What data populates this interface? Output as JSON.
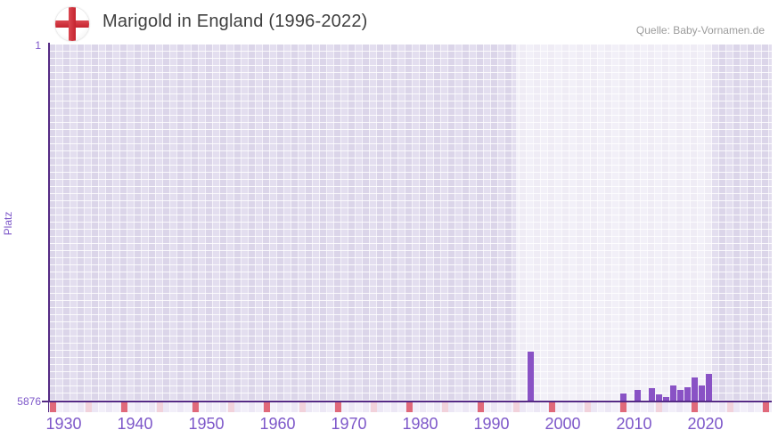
{
  "header": {
    "title": "Marigold in England (1996-2022)",
    "source": "Quelle: Baby-Vornamen.de"
  },
  "y_axis": {
    "label": "Platz",
    "top_tick": "1",
    "bottom_tick": "5876"
  },
  "x_axis": {
    "tick_years": [
      1930,
      1940,
      1950,
      1960,
      1970,
      1980,
      1990,
      2000,
      2010,
      2020
    ]
  },
  "chart_data": {
    "type": "bar",
    "title": "Marigold in England (1996-2022)",
    "xlabel": "",
    "ylabel": "Platz",
    "y_axis_inverted": true,
    "ylim": [
      1,
      5876
    ],
    "x_visible_range": [
      1927,
      2029
    ],
    "highlight_year_range": [
      1996,
      2022
    ],
    "grid": true,
    "legend": false,
    "series": [
      {
        "year": 1996,
        "rank": 5070
      },
      {
        "year": 2010,
        "rank": 5760
      },
      {
        "year": 2012,
        "rank": 5692
      },
      {
        "year": 2014,
        "rank": 5670
      },
      {
        "year": 2015,
        "rank": 5772
      },
      {
        "year": 2016,
        "rank": 5815
      },
      {
        "year": 2017,
        "rank": 5625
      },
      {
        "year": 2018,
        "rank": 5705
      },
      {
        "year": 2019,
        "rank": 5648
      },
      {
        "year": 2020,
        "rank": 5495
      },
      {
        "year": 2021,
        "rank": 5620
      },
      {
        "year": 2022,
        "rank": 5435
      }
    ],
    "colors": {
      "bar": "#8952c5",
      "axis_line": "#552a85",
      "axis_text": "#7d57c9",
      "title_text": "#3f3f3f",
      "source_text": "#9b9b9b",
      "grid_cell_dark": "#dbd5e9",
      "grid_cell_light": "#e3deef",
      "decade_marker_red": "#e0697a",
      "five_year_marker_pink": "#f2d2db",
      "flag_red": "#c5242f"
    }
  }
}
